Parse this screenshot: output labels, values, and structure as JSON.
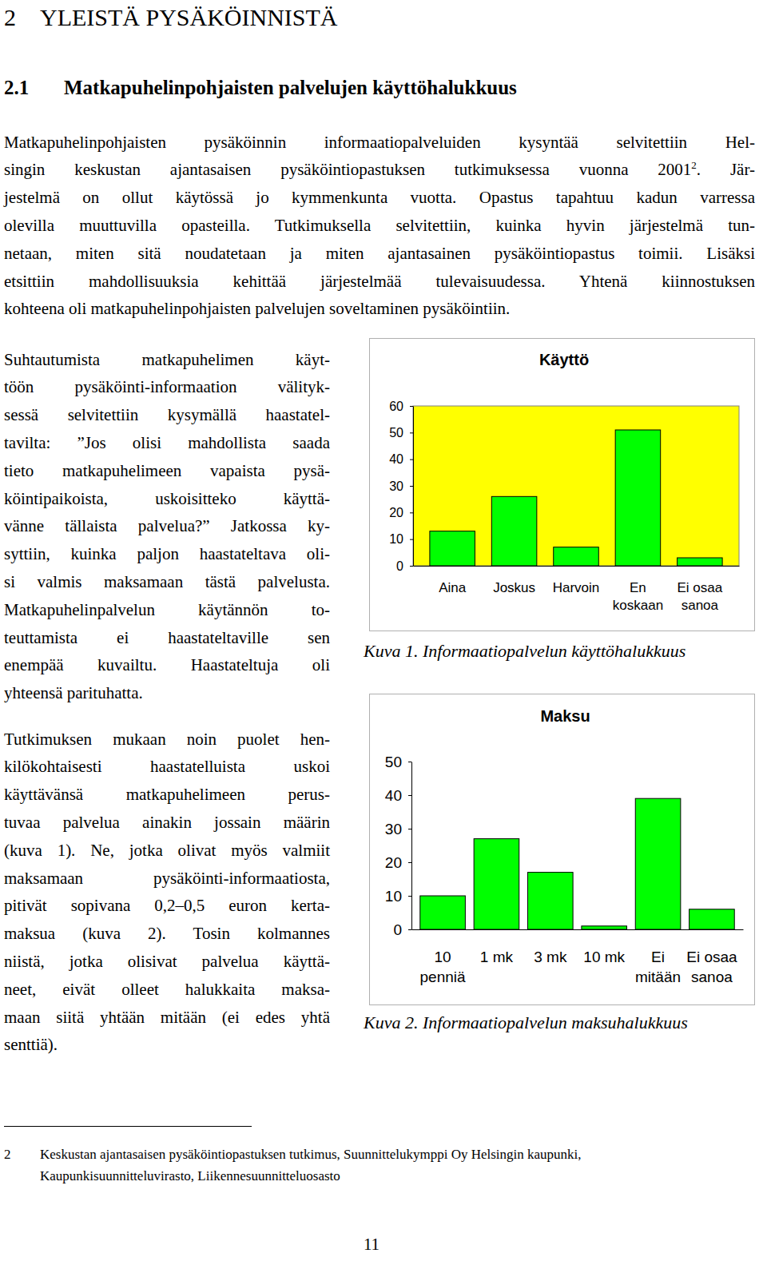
{
  "document": {
    "heading": {
      "number": "2",
      "title": "YLEISTÄ PYSÄKÖINNISTÄ"
    },
    "section_heading": {
      "number": "2.1",
      "title": "Matkapuhelinpohjaisten palvelujen käyttöhalukkuus"
    },
    "intro": {
      "lines": [
        "Matkapuhelinpohjaisten pysäköinnin informaatiopalveluiden kysyntää selvitettiin Hel-",
        [
          "singin keskustan ajantasaisen pysäköintiopastuksen tutkimuksessa vuonna 2001",
          {
            "sup": "2"
          },
          ". Jär-"
        ],
        "jestelmä on ollut käytössä jo kymmenkunta vuotta. Opastus tapahtuu kadun varressa",
        "olevilla muuttuvilla opasteilla. Tutkimuksella selvitettiin, kuinka hyvin järjestelmä tun-",
        "netaan, miten sitä noudatetaan ja miten ajantasainen pysäköintiopastus toimii. Lisäksi",
        "etsittiin mahdollisuuksia kehittää järjestelmää tulevaisuudessa. Yhtenä kiinnostuksen",
        "kohteena oli matkapuhelinpohjaisten palvelujen soveltaminen pysäköintiin."
      ]
    },
    "column_paragraphs": [
      {
        "lines": [
          "Suhtautumista matkapuhelimen käyt-",
          "töön pysäköinti-informaation välityk-",
          "sessä selvitettiin kysymällä haastatel-",
          "tavilta: ”Jos olisi mahdollista saada",
          "tieto matkapuhelimeen vapaista pysä-",
          "köintipaikoista, uskoisitteko käyttä-",
          "vänne tällaista palvelua?” Jatkossa ky-",
          "syttiin, kuinka paljon haastateltava oli-",
          "si valmis maksamaan tästä palvelusta.",
          "Matkapuhelinpalvelun käytännön to-",
          "teuttamista ei haastateltaville sen",
          "enempää kuvailtu. Haastateltuja oli",
          "yhteensä parituhatta."
        ]
      },
      {
        "lines": [
          "Tutkimuksen mukaan noin puolet hen-",
          "kilökohtaisesti haastatelluista uskoi",
          "käyttävänsä matkapuhelimeen perus-",
          "tuvaa palvelua ainakin jossain määrin",
          "(kuva 1). Ne, jotka olivat myös valmiit",
          "maksamaan pysäköinti-informaatiosta,",
          "pitivät sopivana 0,2–0,5 euron kerta-",
          "maksua (kuva 2). Tosin kolmannes",
          "niistä, jotka olisivat palvelua käyttä-",
          "neet, eivät olleet halukkaita maksa-",
          "maan siitä yhtään mitään (ei edes yhtä",
          "senttiä)."
        ]
      }
    ],
    "captions": [
      "Kuva 1. Informaatiopalvelun käyttöhalukkuus",
      "Kuva 2. Informaatiopalvelun maksuhalukkuus"
    ],
    "footnote": {
      "number": "2",
      "lines": [
        "Keskustan ajantasaisen pysäköintiopastuksen tutkimus, Suunnittelukymppi Oy Helsingin kaupunki,",
        "Kaupunkisuunnitteluvirasto, Liikennesuunnitteluosasto"
      ]
    },
    "page_number": "11"
  },
  "chart_data": [
    {
      "type": "bar",
      "title": "Käyttö",
      "categories": [
        "Aina",
        "Joskus",
        "Harvoin",
        "En koskaan",
        "Ei osaa sanoa"
      ],
      "values": [
        13,
        26,
        7,
        51,
        3
      ],
      "color": "#00ff00",
      "ylim": [
        0,
        60
      ],
      "yticks": [
        0,
        10,
        20,
        30,
        40,
        50,
        60
      ],
      "grid": false
    },
    {
      "type": "bar",
      "title": "Maksu",
      "categories": [
        "10 penniä",
        "1 mk",
        "3 mk",
        "10 mk",
        "Ei mitään",
        "Ei osaa sanoa"
      ],
      "values": [
        10,
        27,
        17,
        1,
        39,
        6
      ],
      "color": "#00ff00",
      "ylim": [
        0,
        50
      ],
      "yticks": [
        0,
        10,
        20,
        30,
        40,
        50
      ],
      "grid": false
    }
  ]
}
